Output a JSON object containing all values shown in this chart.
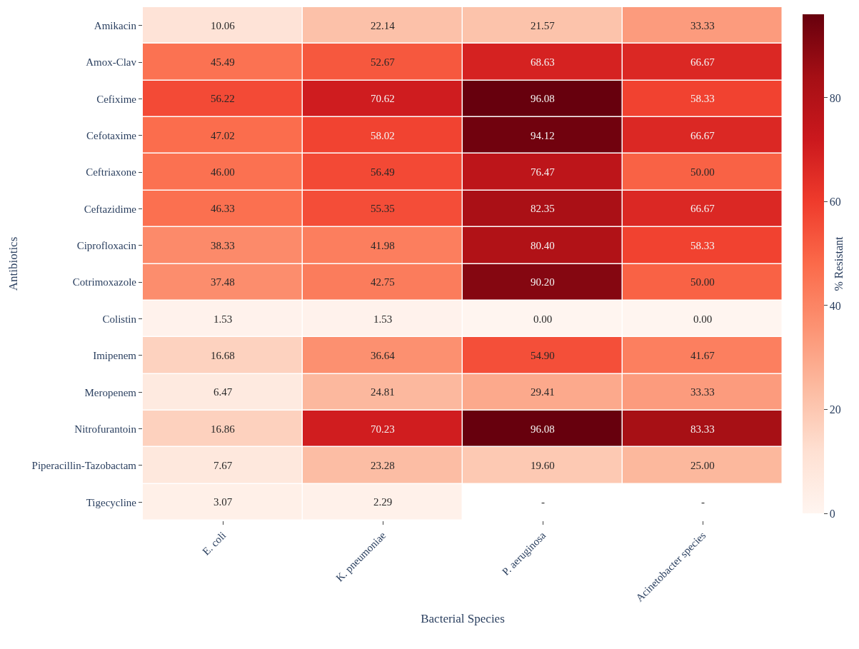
{
  "chart_data": {
    "type": "heatmap",
    "xlabel": "Bacterial Species",
    "ylabel": "Antibiotics",
    "clabel": "% Resistant",
    "categories": [
      "E. coli",
      "K. pneumoniae",
      "P. aeruginosa",
      "Acinetobacter species"
    ],
    "y_categories": [
      "Amikacin",
      "Amox-Clav",
      "Cefixime",
      "Cefotaxime",
      "Ceftriaxone",
      "Ceftazidime",
      "Ciprofloxacin",
      "Cotrimoxazole",
      "Colistin",
      "Imipenem",
      "Meropenem",
      "Nitrofurantoin",
      "Piperacillin-Tazobactam",
      "Tigecycline"
    ],
    "cells": [
      [
        10.06,
        22.14,
        21.57,
        33.33
      ],
      [
        45.49,
        52.67,
        68.63,
        66.67
      ],
      [
        56.22,
        70.62,
        96.08,
        58.33
      ],
      [
        47.02,
        58.02,
        94.12,
        66.67
      ],
      [
        46.0,
        56.49,
        76.47,
        50.0
      ],
      [
        46.33,
        55.35,
        82.35,
        66.67
      ],
      [
        38.33,
        41.98,
        80.4,
        58.33
      ],
      [
        37.48,
        42.75,
        90.2,
        50.0
      ],
      [
        1.53,
        1.53,
        0.0,
        0.0
      ],
      [
        16.68,
        36.64,
        54.9,
        41.67
      ],
      [
        6.47,
        24.81,
        29.41,
        33.33
      ],
      [
        16.86,
        70.23,
        96.08,
        83.33
      ],
      [
        7.67,
        23.28,
        19.6,
        25.0
      ],
      [
        3.07,
        2.29,
        null,
        null
      ]
    ],
    "cell_labels": [
      [
        "10.06",
        "22.14",
        "21.57",
        "33.33"
      ],
      [
        "45.49",
        "52.67",
        "68.63",
        "66.67"
      ],
      [
        "56.22",
        "70.62",
        "96.08",
        "58.33"
      ],
      [
        "47.02",
        "58.02",
        "94.12",
        "66.67"
      ],
      [
        "46.00",
        "56.49",
        "76.47",
        "50.00"
      ],
      [
        "46.33",
        "55.35",
        "82.35",
        "66.67"
      ],
      [
        "38.33",
        "41.98",
        "80.40",
        "58.33"
      ],
      [
        "37.48",
        "42.75",
        "90.20",
        "50.00"
      ],
      [
        "1.53",
        "1.53",
        "0.00",
        "0.00"
      ],
      [
        "16.68",
        "36.64",
        "54.90",
        "41.67"
      ],
      [
        "6.47",
        "24.81",
        "29.41",
        "33.33"
      ],
      [
        "16.86",
        "70.23",
        "96.08",
        "83.33"
      ],
      [
        "7.67",
        "23.28",
        "19.60",
        "25.00"
      ],
      [
        "3.07",
        "2.29",
        "-",
        "-"
      ]
    ],
    "clim": [
      0,
      96.08
    ],
    "cticks": [
      0,
      20,
      40,
      60,
      80
    ]
  }
}
